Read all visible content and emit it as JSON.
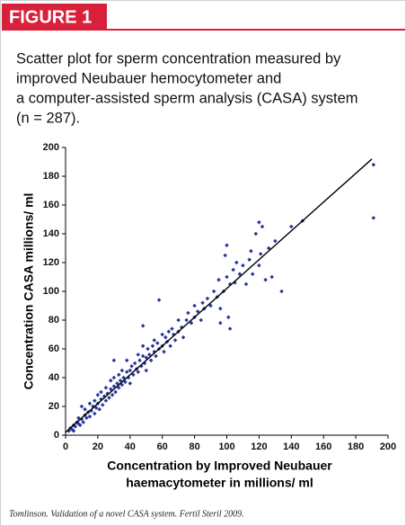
{
  "header": {
    "label": "FIGURE 1"
  },
  "caption": [
    "Scatter plot for sperm concentration measured by",
    "improved Neubauer hemocytometer and",
    "a computer-assisted sperm analysis (CASA) system",
    "(n = 287)."
  ],
  "chart_data": {
    "type": "scatter",
    "xlabel": [
      "Concentration by Improved Neubauer",
      "haemacytometer in millions/ ml"
    ],
    "ylabel": "Concentration CASA millions/ ml",
    "xlim": [
      0,
      200
    ],
    "ylim": [
      0,
      200
    ],
    "xticks": [
      0,
      20,
      40,
      60,
      80,
      100,
      120,
      140,
      160,
      180,
      200
    ],
    "yticks": [
      0,
      20,
      40,
      60,
      80,
      100,
      120,
      140,
      160,
      180,
      200
    ],
    "series": [
      {
        "color": "#26359a",
        "x": [
          2,
          3,
          4,
          5,
          5,
          6,
          7,
          8,
          8,
          9,
          10,
          10,
          11,
          12,
          12,
          13,
          14,
          15,
          15,
          16,
          17,
          18,
          18,
          19,
          20,
          20,
          21,
          22,
          22,
          23,
          24,
          25,
          25,
          26,
          27,
          28,
          28,
          29,
          30,
          30,
          31,
          32,
          33,
          33,
          34,
          35,
          35,
          36,
          37,
          38,
          38,
          39,
          40,
          40,
          41,
          42,
          43,
          44,
          45,
          45,
          46,
          47,
          48,
          48,
          49,
          50,
          50,
          51,
          52,
          53,
          54,
          55,
          55,
          56,
          57,
          58,
          60,
          60,
          61,
          62,
          63,
          64,
          65,
          66,
          67,
          68,
          70,
          70,
          72,
          73,
          75,
          76,
          78,
          80,
          80,
          82,
          84,
          85,
          86,
          88,
          90,
          92,
          94,
          95,
          96,
          98,
          99,
          100,
          100,
          101,
          102,
          104,
          105,
          106,
          108,
          110,
          112,
          114,
          115,
          116,
          118,
          120,
          120,
          121,
          122,
          124,
          126,
          128,
          130,
          134,
          140,
          147,
          191,
          191,
          58,
          48,
          30,
          96,
          102
        ],
        "values": [
          3,
          5,
          4,
          7,
          3,
          6,
          9,
          8,
          12,
          7,
          11,
          20,
          9,
          14,
          18,
          12,
          16,
          13,
          22,
          17,
          20,
          15,
          24,
          19,
          22,
          28,
          18,
          25,
          30,
          21,
          27,
          24,
          33,
          29,
          26,
          32,
          38,
          28,
          34,
          40,
          30,
          36,
          33,
          42,
          38,
          35,
          45,
          40,
          37,
          44,
          52,
          40,
          45,
          36,
          48,
          42,
          50,
          46,
          44,
          56,
          52,
          48,
          55,
          62,
          50,
          54,
          45,
          60,
          56,
          52,
          62,
          58,
          66,
          55,
          64,
          60,
          62,
          70,
          58,
          68,
          65,
          72,
          62,
          74,
          70,
          66,
          72,
          80,
          75,
          68,
          80,
          85,
          78,
          82,
          90,
          86,
          80,
          92,
          88,
          95,
          90,
          100,
          96,
          108,
          88,
          100,
          125,
          110,
          132,
          82,
          105,
          115,
          106,
          120,
          112,
          118,
          105,
          122,
          128,
          112,
          140,
          148,
          118,
          126,
          145,
          108,
          130,
          110,
          135,
          100,
          145,
          149,
          188,
          151,
          94,
          76,
          52,
          78,
          74
        ]
      }
    ],
    "fit_line": {
      "color": "#000000",
      "x": [
        0,
        190
      ],
      "values": [
        2,
        192
      ]
    }
  },
  "footer": "Tomlinson. Validation of a novel CASA system. Fertil Steril 2009."
}
